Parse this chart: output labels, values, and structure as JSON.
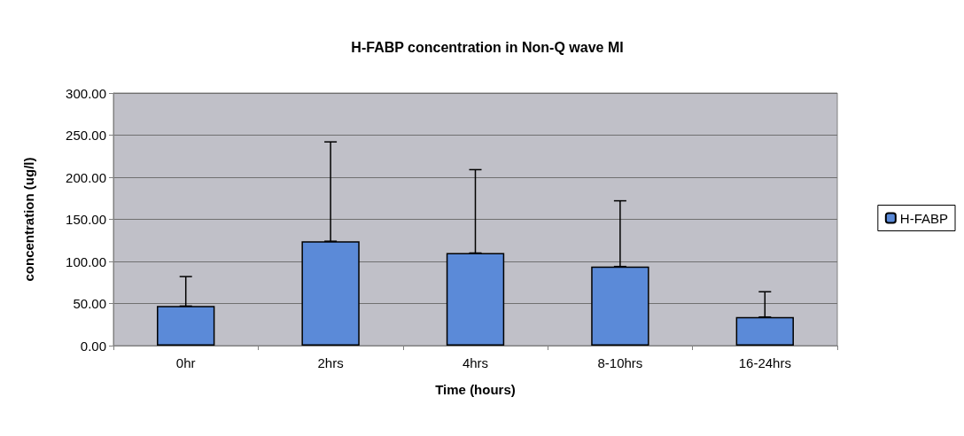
{
  "chart_data": {
    "type": "bar",
    "title": "H-FABP concentration in Non-Q wave MI",
    "xlabel": "Time (hours)",
    "ylabel": "concentration (ug/l)",
    "categories": [
      "0hr",
      "2hrs",
      "4hrs",
      "8-10hrs",
      "16-24hrs"
    ],
    "series": [
      {
        "name": "H-FABP",
        "color": "#5b8ad8",
        "values": [
          47,
          124,
          110,
          94,
          34
        ],
        "errors": [
          [
            47,
            82
          ],
          [
            124,
            242
          ],
          [
            110,
            209
          ],
          [
            94,
            172
          ],
          [
            34,
            64
          ]
        ]
      }
    ],
    "ylim": [
      0,
      300
    ],
    "yticks": [
      {
        "value": 0,
        "label": "0.00"
      },
      {
        "value": 50,
        "label": "50.00"
      },
      {
        "value": 100,
        "label": "100.00"
      },
      {
        "value": 150,
        "label": "150.00"
      },
      {
        "value": 200,
        "label": "200.00"
      },
      {
        "value": 250,
        "label": "250.00"
      },
      {
        "value": 300,
        "label": "300.00"
      }
    ],
    "grid": "y",
    "legend": "right"
  }
}
